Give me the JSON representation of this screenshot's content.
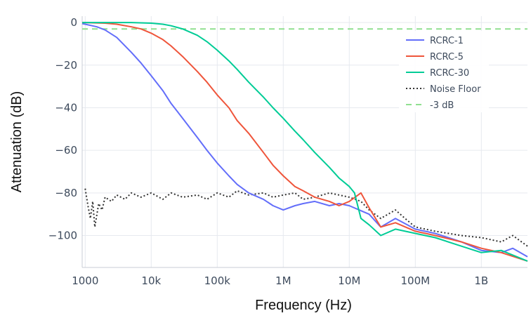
{
  "chart_data": {
    "type": "line",
    "xlabel": "Frequency (Hz)",
    "ylabel": "Attenuation (dB)",
    "x_scale": "log",
    "xlim": [
      900,
      5000000000
    ],
    "ylim": [
      -115,
      3
    ],
    "x_ticks": [
      {
        "value": 1000,
        "label": "1000"
      },
      {
        "value": 10000,
        "label": "10k"
      },
      {
        "value": 100000,
        "label": "100k"
      },
      {
        "value": 1000000,
        "label": "1M"
      },
      {
        "value": 10000000,
        "label": "10M"
      },
      {
        "value": 100000000,
        "label": "100M"
      },
      {
        "value": 1000000000,
        "label": "1B"
      }
    ],
    "y_ticks": [
      {
        "value": 0,
        "label": "0"
      },
      {
        "value": -20,
        "label": "−20"
      },
      {
        "value": -40,
        "label": "−40"
      },
      {
        "value": -60,
        "label": "−60"
      },
      {
        "value": -80,
        "label": "−80"
      },
      {
        "value": -100,
        "label": "−100"
      }
    ],
    "grid": true,
    "legend_position": "top-right",
    "series": [
      {
        "name": "RCRC-1",
        "color": "#636efa",
        "style": "solid",
        "points": [
          [
            900,
            -0.5
          ],
          [
            1000,
            -0.8
          ],
          [
            1500,
            -2
          ],
          [
            2000,
            -3.5
          ],
          [
            3000,
            -7
          ],
          [
            5000,
            -14
          ],
          [
            7000,
            -19
          ],
          [
            10000,
            -25
          ],
          [
            15000,
            -32
          ],
          [
            20000,
            -38
          ],
          [
            30000,
            -45
          ],
          [
            50000,
            -54
          ],
          [
            70000,
            -60
          ],
          [
            100000,
            -66
          ],
          [
            150000,
            -72
          ],
          [
            200000,
            -76
          ],
          [
            300000,
            -80
          ],
          [
            500000,
            -83
          ],
          [
            700000,
            -86
          ],
          [
            1000000,
            -88
          ],
          [
            1500000,
            -86
          ],
          [
            2000000,
            -85
          ],
          [
            3000000,
            -84
          ],
          [
            5000000,
            -86
          ],
          [
            7000000,
            -85
          ],
          [
            10000000,
            -86
          ],
          [
            20000000,
            -90
          ],
          [
            30000000,
            -96
          ],
          [
            50000000,
            -92
          ],
          [
            100000000,
            -97
          ],
          [
            200000000,
            -99
          ],
          [
            500000000,
            -103
          ],
          [
            1000000000,
            -107
          ],
          [
            2000000000,
            -108
          ],
          [
            3000000000,
            -106
          ],
          [
            5000000000,
            -110
          ]
        ]
      },
      {
        "name": "RCRC-5",
        "color": "#ef553b",
        "style": "solid",
        "points": [
          [
            900,
            0
          ],
          [
            2000,
            -0.3
          ],
          [
            3000,
            -0.8
          ],
          [
            5000,
            -2
          ],
          [
            7000,
            -3
          ],
          [
            10000,
            -5
          ],
          [
            15000,
            -8
          ],
          [
            20000,
            -11
          ],
          [
            30000,
            -16
          ],
          [
            50000,
            -23
          ],
          [
            70000,
            -28
          ],
          [
            100000,
            -34
          ],
          [
            150000,
            -40
          ],
          [
            200000,
            -46
          ],
          [
            300000,
            -52
          ],
          [
            500000,
            -61
          ],
          [
            700000,
            -67
          ],
          [
            1000000,
            -72
          ],
          [
            1500000,
            -77
          ],
          [
            2000000,
            -79
          ],
          [
            3000000,
            -82
          ],
          [
            5000000,
            -84
          ],
          [
            7000000,
            -86
          ],
          [
            10000000,
            -84
          ],
          [
            15000000,
            -80
          ],
          [
            20000000,
            -87
          ],
          [
            30000000,
            -96
          ],
          [
            50000000,
            -94
          ],
          [
            100000000,
            -98
          ],
          [
            200000000,
            -100
          ],
          [
            500000000,
            -103
          ],
          [
            1000000000,
            -106
          ],
          [
            2000000000,
            -108
          ],
          [
            5000000000,
            -112
          ]
        ]
      },
      {
        "name": "RCRC-30",
        "color": "#00cc96",
        "style": "solid",
        "points": [
          [
            900,
            0
          ],
          [
            5000,
            0
          ],
          [
            10000,
            -0.3
          ],
          [
            15000,
            -0.8
          ],
          [
            20000,
            -1.5
          ],
          [
            30000,
            -3
          ],
          [
            50000,
            -6
          ],
          [
            70000,
            -9
          ],
          [
            100000,
            -13
          ],
          [
            150000,
            -18
          ],
          [
            200000,
            -22
          ],
          [
            300000,
            -28
          ],
          [
            500000,
            -35
          ],
          [
            700000,
            -40
          ],
          [
            1000000,
            -45
          ],
          [
            1500000,
            -51
          ],
          [
            2000000,
            -55
          ],
          [
            3000000,
            -61
          ],
          [
            5000000,
            -68
          ],
          [
            7000000,
            -73
          ],
          [
            10000000,
            -77
          ],
          [
            12000000,
            -80
          ],
          [
            15000000,
            -92
          ],
          [
            20000000,
            -95
          ],
          [
            30000000,
            -100
          ],
          [
            50000000,
            -97
          ],
          [
            100000000,
            -99
          ],
          [
            200000000,
            -101
          ],
          [
            500000000,
            -105
          ],
          [
            1000000000,
            -108
          ],
          [
            2000000000,
            -107
          ],
          [
            5000000000,
            -112
          ]
        ]
      },
      {
        "name": "Noise Floor",
        "color": "#333333",
        "style": "dotted",
        "points": [
          [
            1000,
            -78
          ],
          [
            1100,
            -86
          ],
          [
            1200,
            -92
          ],
          [
            1300,
            -84
          ],
          [
            1400,
            -96
          ],
          [
            1600,
            -85
          ],
          [
            1800,
            -88
          ],
          [
            2000,
            -82
          ],
          [
            2500,
            -84
          ],
          [
            3000,
            -81
          ],
          [
            4000,
            -83
          ],
          [
            5000,
            -80
          ],
          [
            7000,
            -82
          ],
          [
            10000,
            -80
          ],
          [
            15000,
            -83
          ],
          [
            20000,
            -80
          ],
          [
            30000,
            -82
          ],
          [
            50000,
            -81
          ],
          [
            70000,
            -83
          ],
          [
            100000,
            -80
          ],
          [
            150000,
            -82
          ],
          [
            200000,
            -79
          ],
          [
            300000,
            -81
          ],
          [
            500000,
            -80
          ],
          [
            700000,
            -82
          ],
          [
            1000000,
            -81
          ],
          [
            1500000,
            -80
          ],
          [
            2000000,
            -83
          ],
          [
            3000000,
            -82
          ],
          [
            5000000,
            -80
          ],
          [
            7000000,
            -81
          ],
          [
            10000000,
            -82
          ],
          [
            15000000,
            -84
          ],
          [
            20000000,
            -88
          ],
          [
            30000000,
            -92
          ],
          [
            50000000,
            -88
          ],
          [
            70000000,
            -92
          ],
          [
            100000000,
            -96
          ],
          [
            200000000,
            -98
          ],
          [
            500000000,
            -100
          ],
          [
            1000000000,
            -101
          ],
          [
            2000000000,
            -103
          ],
          [
            3000000000,
            -100
          ],
          [
            5000000000,
            -105
          ]
        ]
      },
      {
        "name": "-3 dB",
        "color": "#90e090",
        "style": "dashed",
        "points": [
          [
            900,
            -3
          ],
          [
            5000000000,
            -3
          ]
        ]
      }
    ]
  }
}
